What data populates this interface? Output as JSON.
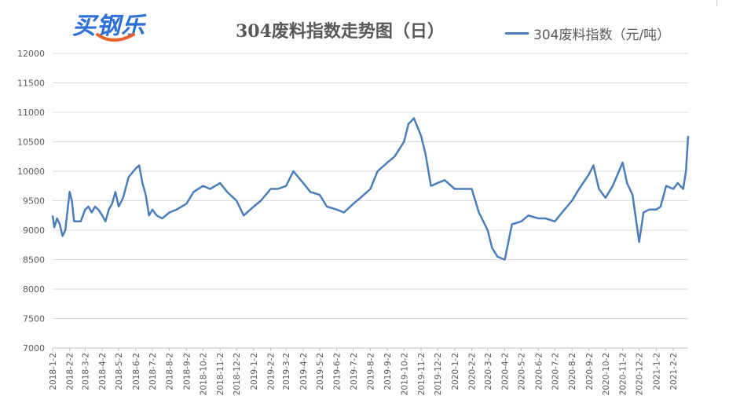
{
  "logo": {
    "text": "买钢乐",
    "color": "#2f6fd8",
    "accent": "#e8622a"
  },
  "chart_data": {
    "type": "line",
    "title": "304废料指数走势图（日）",
    "xlabel": "",
    "ylabel": "",
    "ylim": [
      7000,
      12000
    ],
    "yticks": [
      7000,
      7500,
      8000,
      8500,
      9000,
      9500,
      10000,
      10500,
      11000,
      11500,
      12000
    ],
    "x_tick_labels": [
      "2018-1-2",
      "2018-2-2",
      "2018-3-2",
      "2018-4-2",
      "2018-5-2",
      "2018-6-2",
      "2018-7-2",
      "2018-8-2",
      "2018-9-2",
      "2018-10-2",
      "2018-11-2",
      "2018-12-2",
      "2019-1-2",
      "2019-2-2",
      "2019-3-2",
      "2019-4-2",
      "2019-5-2",
      "2019-6-2",
      "2019-7-2",
      "2019-8-2",
      "2019-9-2",
      "2019-10-2",
      "2019-11-2",
      "2019-12-2",
      "2020-1-2",
      "2020-2-2",
      "2020-3-2",
      "2020-4-2",
      "2020-5-2",
      "2020-6-2",
      "2020-7-2",
      "2020-8-2",
      "2020-9-2",
      "2020-10-2",
      "2020-11-2",
      "2020-12-2",
      "2021-1-2",
      "2021-2-2"
    ],
    "grid": true,
    "legend_position": "top-right",
    "series": [
      {
        "name": "304废料指数（元/吨）",
        "color": "#4a7ebb",
        "x": [
          "2018-1-2",
          "2018-1-5",
          "2018-1-10",
          "2018-1-15",
          "2018-1-20",
          "2018-1-25",
          "2018-2-2",
          "2018-2-6",
          "2018-2-10",
          "2018-2-14",
          "2018-2-22",
          "2018-3-2",
          "2018-3-8",
          "2018-3-14",
          "2018-3-20",
          "2018-3-26",
          "2018-4-2",
          "2018-4-8",
          "2018-4-14",
          "2018-4-20",
          "2018-4-26",
          "2018-5-2",
          "2018-5-10",
          "2018-5-20",
          "2018-6-2",
          "2018-6-8",
          "2018-6-14",
          "2018-6-20",
          "2018-6-26",
          "2018-7-2",
          "2018-7-10",
          "2018-7-20",
          "2018-8-2",
          "2018-8-15",
          "2018-9-2",
          "2018-9-15",
          "2018-10-2",
          "2018-10-15",
          "2018-11-2",
          "2018-11-15",
          "2018-12-2",
          "2018-12-15",
          "2019-1-2",
          "2019-1-15",
          "2019-2-2",
          "2019-2-15",
          "2019-3-2",
          "2019-3-15",
          "2019-4-2",
          "2019-4-15",
          "2019-5-2",
          "2019-5-15",
          "2019-6-2",
          "2019-6-15",
          "2019-7-2",
          "2019-7-15",
          "2019-8-2",
          "2019-8-15",
          "2019-9-2",
          "2019-9-15",
          "2019-10-2",
          "2019-10-10",
          "2019-10-20",
          "2019-11-2",
          "2019-11-10",
          "2019-11-20",
          "2019-12-2",
          "2019-12-15",
          "2020-1-2",
          "2020-1-15",
          "2020-2-2",
          "2020-2-15",
          "2020-3-2",
          "2020-3-10",
          "2020-3-20",
          "2020-4-2",
          "2020-4-15",
          "2020-5-2",
          "2020-5-15",
          "2020-6-2",
          "2020-6-15",
          "2020-7-2",
          "2020-7-15",
          "2020-8-2",
          "2020-8-15",
          "2020-9-2",
          "2020-9-10",
          "2020-9-20",
          "2020-10-2",
          "2020-10-15",
          "2020-11-2",
          "2020-11-10",
          "2020-11-20",
          "2020-12-2",
          "2020-12-10",
          "2020-12-20",
          "2021-1-2",
          "2021-1-10",
          "2021-1-20",
          "2021-2-2",
          "2021-2-10",
          "2021-2-20",
          "2021-2-25",
          "2021-3-1"
        ],
        "values": [
          9250,
          9050,
          9200,
          9100,
          8900,
          9000,
          9650,
          9500,
          9150,
          9150,
          9150,
          9350,
          9400,
          9300,
          9400,
          9350,
          9250,
          9150,
          9350,
          9450,
          9650,
          9400,
          9550,
          9900,
          10050,
          10100,
          9800,
          9600,
          9250,
          9350,
          9250,
          9200,
          9300,
          9350,
          9450,
          9650,
          9750,
          9700,
          9800,
          9650,
          9500,
          9250,
          9400,
          9500,
          9700,
          9700,
          9750,
          10000,
          9800,
          9650,
          9600,
          9400,
          9350,
          9300,
          9450,
          9550,
          9700,
          10000,
          10150,
          10250,
          10500,
          10800,
          10900,
          10600,
          10300,
          9750,
          9800,
          9850,
          9700,
          9700,
          9700,
          9300,
          9000,
          8700,
          8550,
          8500,
          9100,
          9150,
          9250,
          9200,
          9200,
          9150,
          9300,
          9500,
          9700,
          9950,
          10100,
          9700,
          9550,
          9750,
          10150,
          9800,
          9600,
          8800,
          9300,
          9350,
          9350,
          9400,
          9750,
          9700,
          9800,
          9700,
          10000,
          10600
        ]
      }
    ]
  }
}
